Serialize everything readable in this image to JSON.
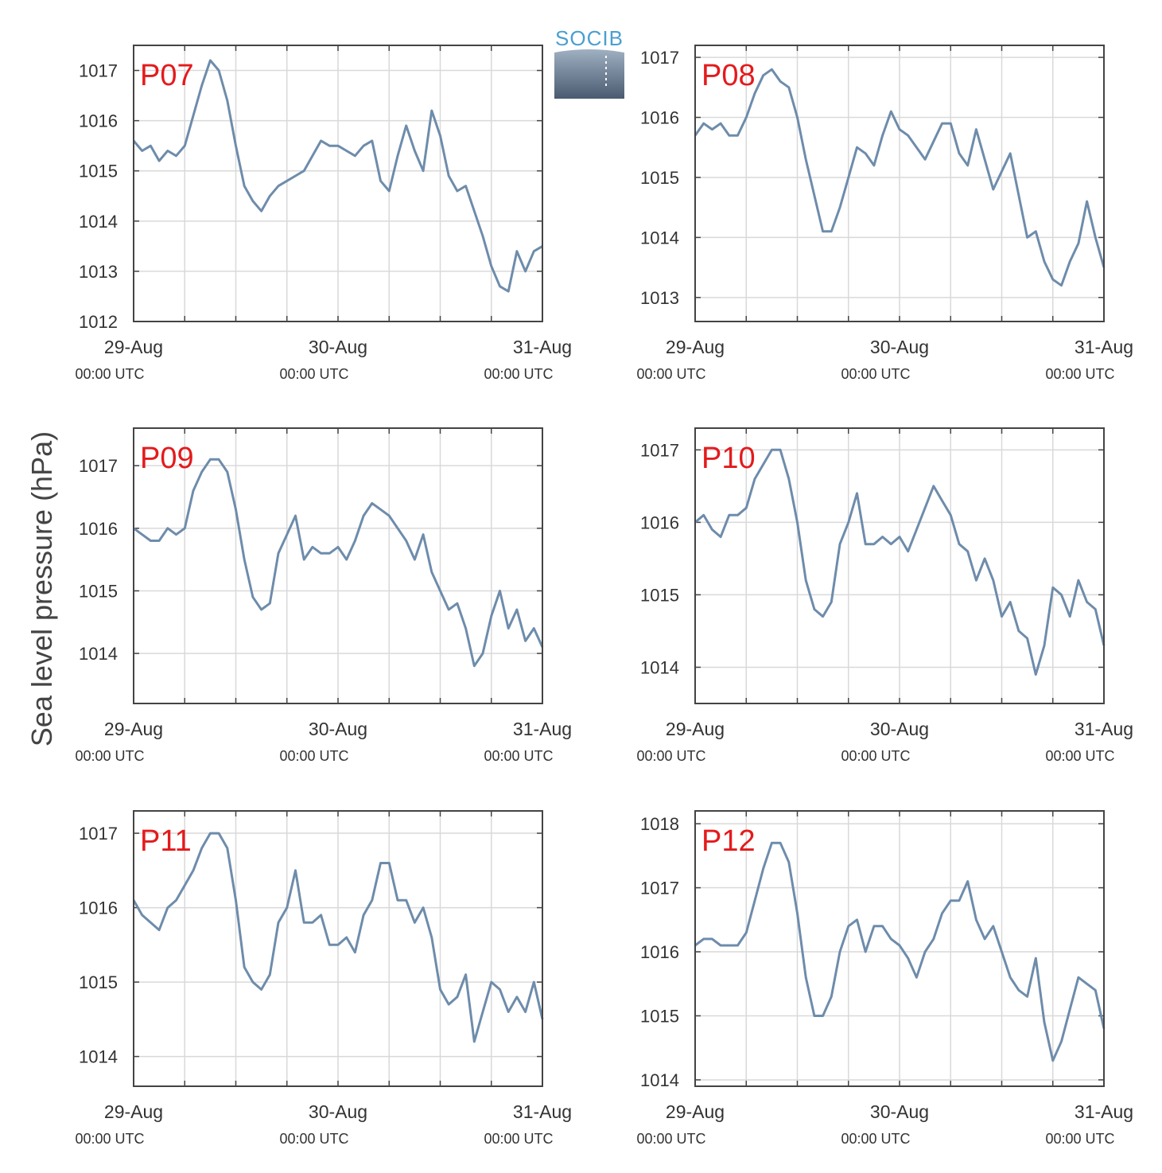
{
  "figure": {
    "ylabel": "Sea level pressure (hPa)",
    "logo": {
      "text": "SOCIB"
    },
    "colors": {
      "series": "#6e8cab",
      "panel_label": "#e41a1c",
      "grid": "#d9d9d9",
      "frame": "#444444"
    }
  },
  "chart_data": [
    {
      "type": "line",
      "title": "P07",
      "ylim": [
        1012,
        1017.5
      ],
      "yticks": [
        1012,
        1013,
        1014,
        1015,
        1016,
        1017
      ],
      "xlim": [
        0,
        48
      ],
      "grid": true,
      "xticks": [
        {
          "x": 0,
          "date": "29-Aug",
          "time": "00:00 UTC"
        },
        {
          "x": 24,
          "date": "30-Aug",
          "time": "00:00 UTC"
        },
        {
          "x": 48,
          "date": "31-Aug",
          "time": "00:00 UTC"
        }
      ],
      "x": [
        0,
        1,
        2,
        3,
        4,
        5,
        6,
        7,
        8,
        9,
        10,
        11,
        12,
        13,
        14,
        15,
        16,
        17,
        18,
        19,
        20,
        21,
        22,
        23,
        24,
        25,
        26,
        27,
        28,
        29,
        30,
        31,
        32,
        33,
        34,
        35,
        36,
        37,
        38,
        39,
        40,
        41,
        42,
        43,
        44,
        45,
        46,
        47,
        48
      ],
      "values": [
        1015.6,
        1015.4,
        1015.5,
        1015.2,
        1015.4,
        1015.3,
        1015.5,
        1016.1,
        1016.7,
        1017.2,
        1017.0,
        1016.4,
        1015.5,
        1014.7,
        1014.4,
        1014.2,
        1014.5,
        1014.7,
        1014.8,
        1014.9,
        1015.0,
        1015.3,
        1015.6,
        1015.5,
        1015.5,
        1015.4,
        1015.3,
        1015.5,
        1015.6,
        1014.8,
        1014.6,
        1015.3,
        1015.9,
        1015.4,
        1015.0,
        1016.2,
        1015.7,
        1014.9,
        1014.6,
        1014.7,
        1014.2,
        1013.7,
        1013.1,
        1012.7,
        1012.6,
        1013.4,
        1013.0,
        1013.4,
        1013.5
      ]
    },
    {
      "type": "line",
      "title": "P08",
      "ylim": [
        1012.6,
        1017.2
      ],
      "yticks": [
        1013,
        1014,
        1015,
        1016,
        1017
      ],
      "xlim": [
        0,
        48
      ],
      "grid": true,
      "xticks": [
        {
          "x": 0,
          "date": "29-Aug",
          "time": "00:00 UTC"
        },
        {
          "x": 24,
          "date": "30-Aug",
          "time": "00:00 UTC"
        },
        {
          "x": 48,
          "date": "31-Aug",
          "time": "00:00 UTC"
        }
      ],
      "x": [
        0,
        1,
        2,
        3,
        4,
        5,
        6,
        7,
        8,
        9,
        10,
        11,
        12,
        13,
        14,
        15,
        16,
        17,
        18,
        19,
        20,
        21,
        22,
        23,
        24,
        25,
        26,
        27,
        28,
        29,
        30,
        31,
        32,
        33,
        34,
        35,
        36,
        37,
        38,
        39,
        40,
        41,
        42,
        43,
        44,
        45,
        46,
        47,
        48
      ],
      "values": [
        1015.7,
        1015.9,
        1015.8,
        1015.9,
        1015.7,
        1015.7,
        1016.0,
        1016.4,
        1016.7,
        1016.8,
        1016.6,
        1016.5,
        1016.0,
        1015.3,
        1014.7,
        1014.1,
        1014.1,
        1014.5,
        1015.0,
        1015.5,
        1015.4,
        1015.2,
        1015.7,
        1016.1,
        1015.8,
        1015.7,
        1015.5,
        1015.3,
        1015.6,
        1015.9,
        1015.9,
        1015.4,
        1015.2,
        1015.8,
        1015.3,
        1014.8,
        1015.1,
        1015.4,
        1014.7,
        1014.0,
        1014.1,
        1013.6,
        1013.3,
        1013.2,
        1013.6,
        1013.9,
        1014.6,
        1014.0,
        1013.5
      ]
    },
    {
      "type": "line",
      "title": "P09",
      "ylim": [
        1013.2,
        1017.6
      ],
      "yticks": [
        1014,
        1015,
        1016,
        1017
      ],
      "xlim": [
        0,
        48
      ],
      "grid": true,
      "xticks": [
        {
          "x": 0,
          "date": "29-Aug",
          "time": "00:00 UTC"
        },
        {
          "x": 24,
          "date": "30-Aug",
          "time": "00:00 UTC"
        },
        {
          "x": 48,
          "date": "31-Aug",
          "time": "00:00 UTC"
        }
      ],
      "x": [
        0,
        1,
        2,
        3,
        4,
        5,
        6,
        7,
        8,
        9,
        10,
        11,
        12,
        13,
        14,
        15,
        16,
        17,
        18,
        19,
        20,
        21,
        22,
        23,
        24,
        25,
        26,
        27,
        28,
        29,
        30,
        31,
        32,
        33,
        34,
        35,
        36,
        37,
        38,
        39,
        40,
        41,
        42,
        43,
        44,
        45,
        46,
        47,
        48
      ],
      "values": [
        1016.0,
        1015.9,
        1015.8,
        1015.8,
        1016.0,
        1015.9,
        1016.0,
        1016.6,
        1016.9,
        1017.1,
        1017.1,
        1016.9,
        1016.3,
        1015.5,
        1014.9,
        1014.7,
        1014.8,
        1015.6,
        1015.9,
        1016.2,
        1015.5,
        1015.7,
        1015.6,
        1015.6,
        1015.7,
        1015.5,
        1015.8,
        1016.2,
        1016.4,
        1016.3,
        1016.2,
        1016.0,
        1015.8,
        1015.5,
        1015.9,
        1015.3,
        1015.0,
        1014.7,
        1014.8,
        1014.4,
        1013.8,
        1014.0,
        1014.6,
        1015.0,
        1014.4,
        1014.7,
        1014.2,
        1014.4,
        1014.1
      ]
    },
    {
      "type": "line",
      "title": "P10",
      "ylim": [
        1013.5,
        1017.3
      ],
      "yticks": [
        1014,
        1015,
        1016,
        1017
      ],
      "xlim": [
        0,
        48
      ],
      "grid": true,
      "xticks": [
        {
          "x": 0,
          "date": "29-Aug",
          "time": "00:00 UTC"
        },
        {
          "x": 24,
          "date": "30-Aug",
          "time": "00:00 UTC"
        },
        {
          "x": 48,
          "date": "31-Aug",
          "time": "00:00 UTC"
        }
      ],
      "x": [
        0,
        1,
        2,
        3,
        4,
        5,
        6,
        7,
        8,
        9,
        10,
        11,
        12,
        13,
        14,
        15,
        16,
        17,
        18,
        19,
        20,
        21,
        22,
        23,
        24,
        25,
        26,
        27,
        28,
        29,
        30,
        31,
        32,
        33,
        34,
        35,
        36,
        37,
        38,
        39,
        40,
        41,
        42,
        43,
        44,
        45,
        46,
        47,
        48
      ],
      "values": [
        1016.0,
        1016.1,
        1015.9,
        1015.8,
        1016.1,
        1016.1,
        1016.2,
        1016.6,
        1016.8,
        1017.0,
        1017.0,
        1016.6,
        1016.0,
        1015.2,
        1014.8,
        1014.7,
        1014.9,
        1015.7,
        1016.0,
        1016.4,
        1015.7,
        1015.7,
        1015.8,
        1015.7,
        1015.8,
        1015.6,
        1015.9,
        1016.2,
        1016.5,
        1016.3,
        1016.1,
        1015.7,
        1015.6,
        1015.2,
        1015.5,
        1015.2,
        1014.7,
        1014.9,
        1014.5,
        1014.4,
        1013.9,
        1014.3,
        1015.1,
        1015.0,
        1014.7,
        1015.2,
        1014.9,
        1014.8,
        1014.3
      ]
    },
    {
      "type": "line",
      "title": "P11",
      "ylim": [
        1013.6,
        1017.3
      ],
      "yticks": [
        1014,
        1015,
        1016,
        1017
      ],
      "xlim": [
        0,
        48
      ],
      "grid": true,
      "xticks": [
        {
          "x": 0,
          "date": "29-Aug",
          "time": "00:00 UTC"
        },
        {
          "x": 24,
          "date": "30-Aug",
          "time": "00:00 UTC"
        },
        {
          "x": 48,
          "date": "31-Aug",
          "time": "00:00 UTC"
        }
      ],
      "x": [
        0,
        1,
        2,
        3,
        4,
        5,
        6,
        7,
        8,
        9,
        10,
        11,
        12,
        13,
        14,
        15,
        16,
        17,
        18,
        19,
        20,
        21,
        22,
        23,
        24,
        25,
        26,
        27,
        28,
        29,
        30,
        31,
        32,
        33,
        34,
        35,
        36,
        37,
        38,
        39,
        40,
        41,
        42,
        43,
        44,
        45,
        46,
        47,
        48
      ],
      "values": [
        1016.1,
        1015.9,
        1015.8,
        1015.7,
        1016.0,
        1016.1,
        1016.3,
        1016.5,
        1016.8,
        1017.0,
        1017.0,
        1016.8,
        1016.1,
        1015.2,
        1015.0,
        1014.9,
        1015.1,
        1015.8,
        1016.0,
        1016.5,
        1015.8,
        1015.8,
        1015.9,
        1015.5,
        1015.5,
        1015.6,
        1015.4,
        1015.9,
        1016.1,
        1016.6,
        1016.6,
        1016.1,
        1016.1,
        1015.8,
        1016.0,
        1015.6,
        1014.9,
        1014.7,
        1014.8,
        1015.1,
        1014.2,
        1014.6,
        1015.0,
        1014.9,
        1014.6,
        1014.8,
        1014.6,
        1015.0,
        1014.5
      ]
    },
    {
      "type": "line",
      "title": "P12",
      "ylim": [
        1013.9,
        1018.2
      ],
      "yticks": [
        1014,
        1015,
        1016,
        1017,
        1018
      ],
      "xlim": [
        0,
        48
      ],
      "grid": true,
      "xticks": [
        {
          "x": 0,
          "date": "29-Aug",
          "time": "00:00 UTC"
        },
        {
          "x": 24,
          "date": "30-Aug",
          "time": "00:00 UTC"
        },
        {
          "x": 48,
          "date": "31-Aug",
          "time": "00:00 UTC"
        }
      ],
      "x": [
        0,
        1,
        2,
        3,
        4,
        5,
        6,
        7,
        8,
        9,
        10,
        11,
        12,
        13,
        14,
        15,
        16,
        17,
        18,
        19,
        20,
        21,
        22,
        23,
        24,
        25,
        26,
        27,
        28,
        29,
        30,
        31,
        32,
        33,
        34,
        35,
        36,
        37,
        38,
        39,
        40,
        41,
        42,
        43,
        44,
        45,
        46,
        47,
        48
      ],
      "values": [
        1016.1,
        1016.2,
        1016.2,
        1016.1,
        1016.1,
        1016.1,
        1016.3,
        1016.8,
        1017.3,
        1017.7,
        1017.7,
        1017.4,
        1016.6,
        1015.6,
        1015.0,
        1015.0,
        1015.3,
        1016.0,
        1016.4,
        1016.5,
        1016.0,
        1016.4,
        1016.4,
        1016.2,
        1016.1,
        1015.9,
        1015.6,
        1016.0,
        1016.2,
        1016.6,
        1016.8,
        1016.8,
        1017.1,
        1016.5,
        1016.2,
        1016.4,
        1016.0,
        1015.6,
        1015.4,
        1015.3,
        1015.9,
        1014.9,
        1014.3,
        1014.6,
        1015.1,
        1015.6,
        1015.5,
        1015.4,
        1014.8
      ]
    }
  ]
}
